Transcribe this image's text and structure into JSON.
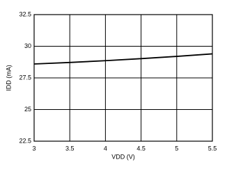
{
  "chart_data": {
    "type": "line",
    "x": [
      3,
      3.5,
      4,
      4.5,
      5,
      5.5
    ],
    "values": [
      28.6,
      28.72,
      28.86,
      29.02,
      29.2,
      29.4
    ],
    "color": "#000000",
    "xlabel": "VDD (V)",
    "ylabel": "IDD (mA)",
    "xlim": [
      3,
      5.5
    ],
    "xticks": [
      3,
      3.5,
      4,
      4.5,
      5,
      5.5
    ],
    "ylim": [
      22.5,
      32.5
    ],
    "yticks": [
      22.5,
      25,
      27.5,
      30,
      32.5
    ],
    "grid": true
  }
}
